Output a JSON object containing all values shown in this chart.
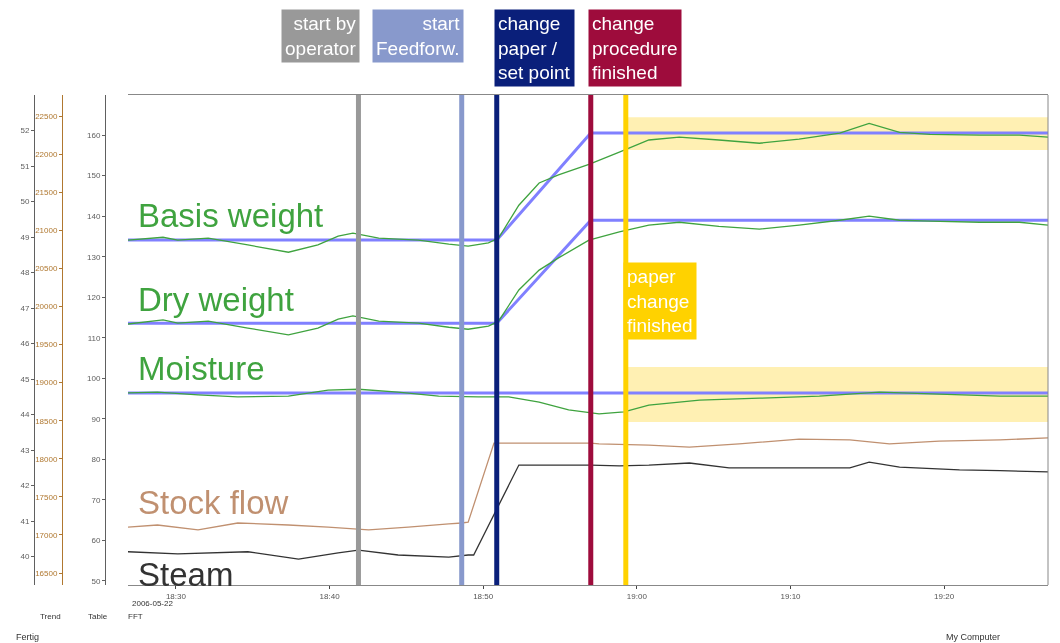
{
  "chart_data": {
    "type": "line",
    "xlim": [
      18.448,
      19.446
    ],
    "xticks": [
      {
        "value": 18.5,
        "label": "18:30"
      },
      {
        "value": 18.6667,
        "label": "18:40"
      },
      {
        "value": 18.8333,
        "label": "18:50"
      },
      {
        "value": 19.0,
        "label": "19:00"
      },
      {
        "value": 19.1667,
        "label": "19:10"
      },
      {
        "value": 19.3333,
        "label": "19:20"
      }
    ],
    "ylim": [
      49.0,
      169.9
    ],
    "yticks": [
      50,
      60,
      70,
      80,
      90,
      100,
      110,
      120,
      130,
      140,
      150,
      160
    ],
    "y2lim": [
      39.2,
      53.0
    ],
    "y2ticks": [
      40,
      41,
      42,
      43,
      44,
      45,
      46,
      47,
      48,
      49,
      50,
      51,
      52
    ],
    "y3lim": [
      16343,
      22776
    ],
    "y3ticks": [
      16500,
      17000,
      17500,
      18000,
      18500,
      19000,
      19500,
      20000,
      20500,
      21000,
      21500,
      22000,
      22500
    ],
    "grid": false,
    "legend": false,
    "series": [
      {
        "color": "#8080ff",
        "x": [
          18.448,
          18.848,
          18.95,
          19.446
        ],
        "values": [
          134.1,
          134.1,
          160.5,
          160.5
        ]
      },
      {
        "color": "#8080ff",
        "x": [
          18.448,
          18.848,
          18.95,
          19.446
        ],
        "values": [
          113.6,
          113.6,
          139.0,
          139.0
        ]
      },
      {
        "color": "#8080ff",
        "x": [
          18.448,
          19.446
        ],
        "values": [
          96.4,
          96.4
        ]
      },
      {
        "name": "Basis weight",
        "color": "#3fa33f",
        "x": [
          18.448,
          18.486,
          18.502,
          18.535,
          18.578,
          18.622,
          18.654,
          18.676,
          18.692,
          18.72,
          18.763,
          18.796,
          18.817,
          18.839,
          18.85,
          18.872,
          18.894,
          18.915,
          18.948,
          18.981,
          19.013,
          19.046,
          19.089,
          19.133,
          19.176,
          19.22,
          19.252,
          19.285,
          19.318,
          19.372,
          19.415,
          19.446
        ],
        "values": [
          134.1,
          134.8,
          134.1,
          134.6,
          132.9,
          131.1,
          132.9,
          135.1,
          135.8,
          134.6,
          134.1,
          133.1,
          132.6,
          133.4,
          134.6,
          142.7,
          148.2,
          150.2,
          152.8,
          155.8,
          158.8,
          159.5,
          158.8,
          158.0,
          159.0,
          160.5,
          162.9,
          160.7,
          160.2,
          160.0,
          160.0,
          159.5
        ]
      },
      {
        "name": "Dry weight",
        "color": "#3fa33f",
        "x": [
          18.448,
          18.486,
          18.502,
          18.535,
          18.578,
          18.622,
          18.654,
          18.676,
          18.692,
          18.72,
          18.763,
          18.796,
          18.817,
          18.839,
          18.85,
          18.872,
          18.894,
          18.915,
          18.948,
          18.981,
          19.013,
          19.046,
          19.089,
          19.133,
          19.176,
          19.22,
          19.252,
          19.285,
          19.318,
          19.372,
          19.415,
          19.446
        ],
        "values": [
          113.4,
          114.4,
          113.6,
          114.1,
          112.4,
          110.7,
          112.4,
          114.6,
          115.4,
          114.1,
          113.6,
          112.6,
          112.1,
          112.9,
          114.1,
          121.8,
          126.7,
          129.7,
          134.1,
          136.1,
          137.8,
          138.5,
          137.5,
          136.8,
          137.8,
          139.0,
          140.0,
          139.0,
          138.8,
          138.5,
          138.5,
          137.8
        ]
      },
      {
        "name": "Moisture",
        "color": "#3fa33f",
        "x": [
          18.448,
          18.48,
          18.524,
          18.567,
          18.622,
          18.665,
          18.698,
          18.741,
          18.785,
          18.828,
          18.861,
          18.894,
          18.926,
          18.959,
          18.986,
          19.013,
          19.068,
          19.133,
          19.198,
          19.263,
          19.328,
          19.394,
          19.446
        ],
        "values": [
          96.4,
          96.6,
          95.9,
          95.4,
          95.6,
          97.1,
          97.3,
          96.6,
          95.6,
          95.4,
          95.4,
          94.1,
          92.2,
          91.2,
          91.7,
          93.4,
          94.6,
          95.1,
          95.6,
          96.6,
          96.1,
          95.6,
          95.6
        ]
      },
      {
        "name": "Stock flow",
        "color": "#c09070",
        "x": [
          18.448,
          18.48,
          18.524,
          18.567,
          18.622,
          18.665,
          18.709,
          18.752,
          18.796,
          18.81,
          18.817,
          18.845,
          18.95,
          18.959,
          19.013,
          19.057,
          19.111,
          19.176,
          19.231,
          19.274,
          19.328,
          19.394,
          19.446
        ],
        "values": [
          63.3,
          63.8,
          62.6,
          64.3,
          63.8,
          63.3,
          62.6,
          63.3,
          64.1,
          64.3,
          64.5,
          84.0,
          84.0,
          83.8,
          83.5,
          83.0,
          83.8,
          85.0,
          84.8,
          83.8,
          84.5,
          84.8,
          85.3
        ]
      },
      {
        "name": "Steam",
        "color": "#333333",
        "x": [
          18.448,
          18.502,
          18.578,
          18.633,
          18.676,
          18.698,
          18.741,
          18.796,
          18.817,
          18.823,
          18.872,
          18.95,
          18.981,
          19.013,
          19.057,
          19.1,
          19.133,
          19.176,
          19.231,
          19.252,
          19.285,
          19.35,
          19.394,
          19.446
        ],
        "values": [
          57.2,
          56.7,
          57.2,
          55.4,
          56.9,
          57.6,
          56.4,
          55.9,
          56.4,
          56.4,
          78.6,
          78.6,
          78.4,
          78.6,
          79.1,
          77.9,
          77.9,
          77.9,
          77.9,
          79.3,
          78.1,
          77.4,
          77.2,
          76.9
        ]
      }
    ],
    "ref_lines": [
      {
        "axis": "x",
        "value": 18.698,
        "label": "start by\noperator",
        "color": "#999999"
      },
      {
        "axis": "x",
        "value": 18.81,
        "label": "start\nFeedforw.",
        "color": "#8899cc"
      },
      {
        "axis": "x",
        "value": 18.848,
        "label": "change\npaper /\nset point",
        "color": "#0a1f7a"
      },
      {
        "axis": "x",
        "value": 18.95,
        "label": "change\nprocedure\nfinished",
        "color": "#9e0c3c"
      },
      {
        "axis": "x",
        "value": 18.988,
        "label": "paper\nchange\nfinished",
        "color": "#ffd200"
      }
    ],
    "bands": [
      {
        "axis": "y",
        "from": 156.3,
        "to": 164.4,
        "color": "#ffe680"
      },
      {
        "axis": "y",
        "from": 89.2,
        "to": 102.8,
        "color": "#ffe680"
      }
    ],
    "annotations": [
      "2006-05-22",
      "Trend",
      "Table",
      "FFT",
      "Fertig",
      "My Computer"
    ]
  }
}
